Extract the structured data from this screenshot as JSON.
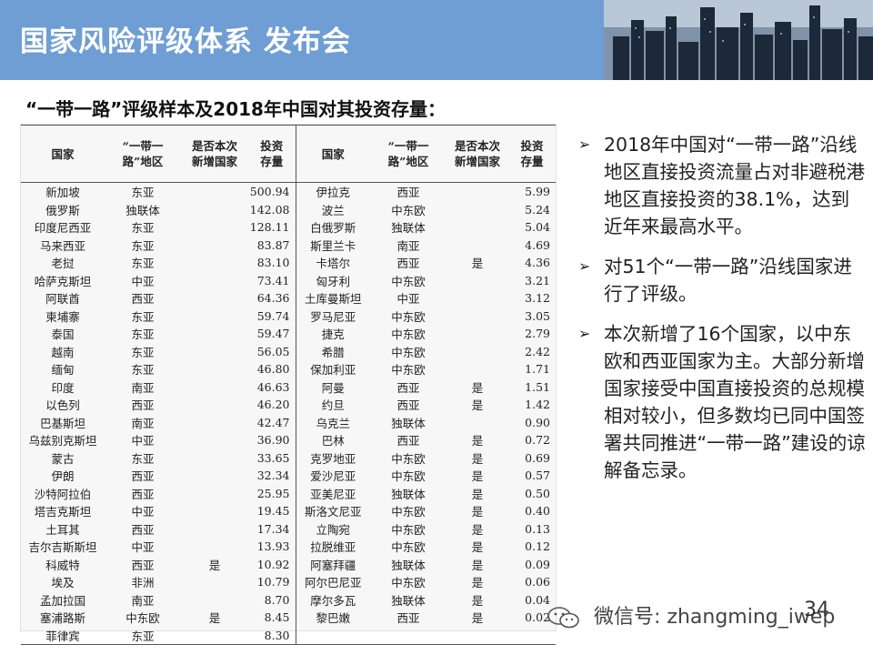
{
  "header": {
    "title": "国家风险评级体系 发布会"
  },
  "subtitle": "“一带一路”评级样本及2018年中国对其投资存量：",
  "table": {
    "headers": [
      "国家",
      "“一带一\n路”地区",
      "是否本次\n新增国家",
      "投资\n存量",
      "国家",
      "“一带一\n路”地区",
      "是否本次\n新增国家",
      "投资\n存量"
    ],
    "rows": [
      [
        "新加坡",
        "东亚",
        "",
        "500.94",
        "伊拉克",
        "西亚",
        "",
        "5.99"
      ],
      [
        "俄罗斯",
        "独联体",
        "",
        "142.08",
        "波兰",
        "中东欧",
        "",
        "5.24"
      ],
      [
        "印度尼西亚",
        "东亚",
        "",
        "128.11",
        "白俄罗斯",
        "独联体",
        "",
        "5.04"
      ],
      [
        "马来西亚",
        "东亚",
        "",
        "83.87",
        "斯里兰卡",
        "南亚",
        "",
        "4.69"
      ],
      [
        "老挝",
        "东亚",
        "",
        "83.10",
        "卡塔尔",
        "西亚",
        "是",
        "4.36"
      ],
      [
        "哈萨克斯坦",
        "中亚",
        "",
        "73.41",
        "匈牙利",
        "中东欧",
        "",
        "3.21"
      ],
      [
        "阿联酋",
        "西亚",
        "",
        "64.36",
        "土库曼斯坦",
        "中亚",
        "",
        "3.12"
      ],
      [
        "柬埔寨",
        "东亚",
        "",
        "59.74",
        "罗马尼亚",
        "中东欧",
        "",
        "3.05"
      ],
      [
        "泰国",
        "东亚",
        "",
        "59.47",
        "捷克",
        "中东欧",
        "",
        "2.79"
      ],
      [
        "越南",
        "东亚",
        "",
        "56.05",
        "希腊",
        "中东欧",
        "",
        "2.42"
      ],
      [
        "缅甸",
        "东亚",
        "",
        "46.80",
        "保加利亚",
        "中东欧",
        "",
        "1.71"
      ],
      [
        "印度",
        "南亚",
        "",
        "46.63",
        "阿曼",
        "西亚",
        "是",
        "1.51"
      ],
      [
        "以色列",
        "西亚",
        "",
        "46.20",
        "约旦",
        "西亚",
        "是",
        "1.42"
      ],
      [
        "巴基斯坦",
        "南亚",
        "",
        "42.47",
        "乌克兰",
        "独联体",
        "",
        "0.90"
      ],
      [
        "乌兹别克斯坦",
        "中亚",
        "",
        "36.90",
        "巴林",
        "西亚",
        "是",
        "0.72"
      ],
      [
        "蒙古",
        "东亚",
        "",
        "33.65",
        "克罗地亚",
        "中东欧",
        "是",
        "0.69"
      ],
      [
        "伊朗",
        "西亚",
        "",
        "32.34",
        "爱沙尼亚",
        "中东欧",
        "是",
        "0.57"
      ],
      [
        "沙特阿拉伯",
        "西亚",
        "",
        "25.95",
        "亚美尼亚",
        "独联体",
        "是",
        "0.50"
      ],
      [
        "塔吉克斯坦",
        "中亚",
        "",
        "19.45",
        "斯洛文尼亚",
        "中东欧",
        "是",
        "0.40"
      ],
      [
        "土耳其",
        "西亚",
        "",
        "17.34",
        "立陶宛",
        "中东欧",
        "是",
        "0.13"
      ],
      [
        "吉尔吉斯斯坦",
        "中亚",
        "",
        "13.93",
        "拉脱维亚",
        "中东欧",
        "是",
        "0.12"
      ],
      [
        "科威特",
        "西亚",
        "是",
        "10.92",
        "阿塞拜疆",
        "独联体",
        "是",
        "0.09"
      ],
      [
        "埃及",
        "非洲",
        "",
        "10.79",
        "阿尔巴尼亚",
        "中东欧",
        "是",
        "0.06"
      ],
      [
        "孟加拉国",
        "南亚",
        "",
        "8.70",
        "摩尔多瓦",
        "独联体",
        "是",
        "0.04"
      ],
      [
        "塞浦路斯",
        "中东欧",
        "是",
        "8.45",
        "黎巴嫩",
        "西亚",
        "是",
        "0.02"
      ],
      [
        "菲律宾",
        "东亚",
        "",
        "8.30",
        "",
        "",
        "",
        ""
      ]
    ]
  },
  "bullets": [
    "2018年中国对“一带一路”沿线地区直接投资流量占对非避税港地区直接投资的38.1%，达到近年来最高水平。",
    "对51个“一带一路”沿线国家进行了评级。",
    "本次新增了16个国家，以中东欧和西亚国家为主。大部分新增国家接受中国直接投资的总规模相对较小，但多数均已同中国签署共同推进“一带一路”建设的谅解备忘录。"
  ],
  "bullet_mark": "➢",
  "watermark": "微信号: zhangming_iwep",
  "page_number": "34"
}
